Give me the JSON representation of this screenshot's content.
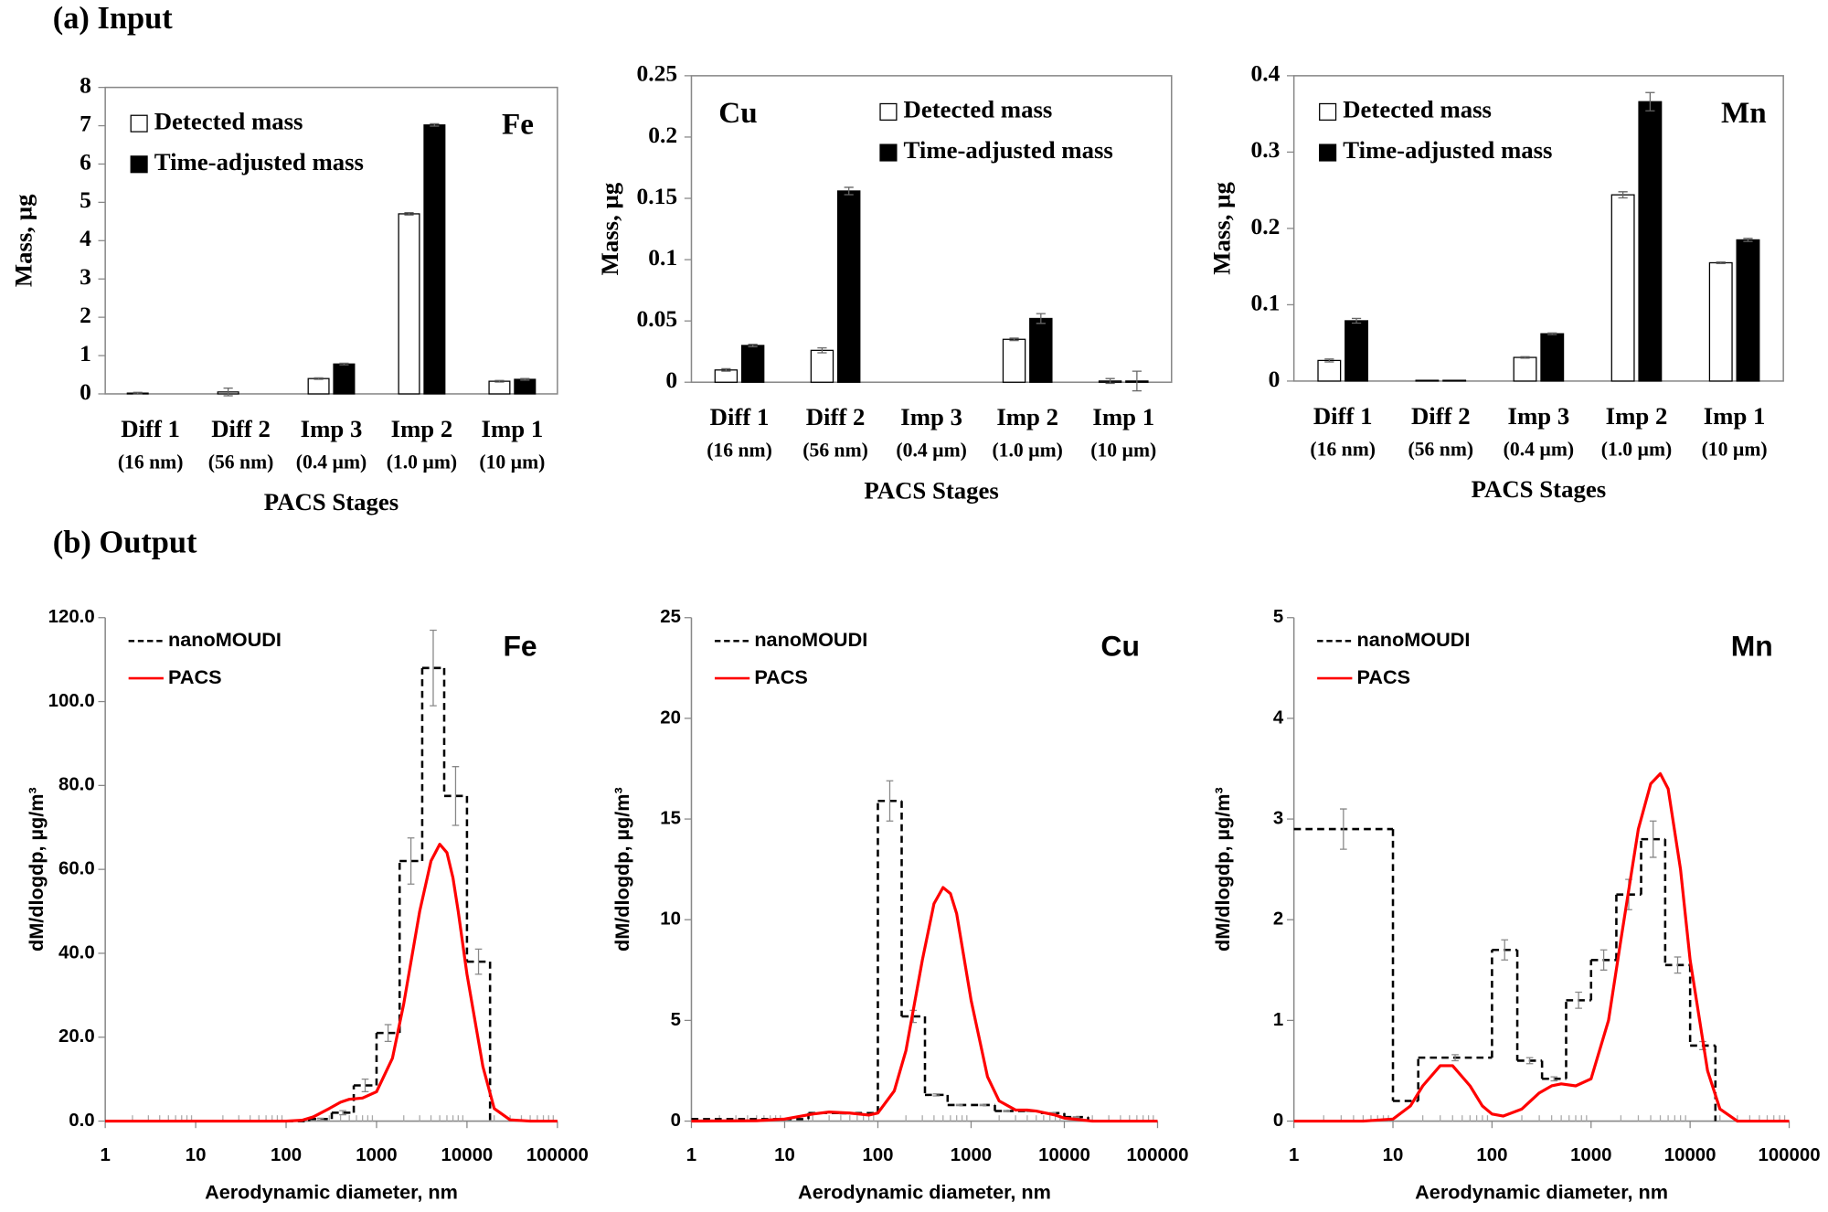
{
  "section_labels": [
    "(a) Input",
    "(b) Output"
  ],
  "chart_data": [
    {
      "type": "bar",
      "annotation": "Fe",
      "annotation_loc": "upper right",
      "legend": "upper left",
      "ylabel": "Mass, µg",
      "xlabel": "PACS Stages",
      "categories": [
        "Diff 1",
        "Diff 2",
        "Imp 3",
        "Imp 2",
        "Imp 1"
      ],
      "category_sublabels": [
        "(16 nm)",
        "(56 nm)",
        "(0.4 µm)",
        "(1.0 µm)",
        "(10 µm)"
      ],
      "ylim": [
        0,
        8
      ],
      "yticks": [
        0,
        1,
        2,
        3,
        4,
        5,
        6,
        7,
        8
      ],
      "series": [
        {
          "name": "Detected mass",
          "color": "#ffffff",
          "values": [
            0.02,
            0.05,
            0.4,
            4.7,
            0.33
          ],
          "errors": [
            0.02,
            0.1,
            0.02,
            0.03,
            0.02
          ]
        },
        {
          "name": "Time-adjusted mass",
          "color": "#000000",
          "values": [
            0,
            0,
            0.78,
            7.02,
            0.38
          ],
          "errors": [
            0,
            0,
            0.02,
            0.03,
            0.02
          ]
        }
      ]
    },
    {
      "type": "bar",
      "annotation": "Cu",
      "annotation_loc": "upper left",
      "legend": "upper right",
      "ylabel": "Mass, µg",
      "xlabel": "PACS Stages",
      "categories": [
        "Diff 1",
        "Diff 2",
        "Imp 3",
        "Imp 2",
        "Imp 1"
      ],
      "category_sublabels": [
        "(16 nm)",
        "(56 nm)",
        "(0.4 µm)",
        "(1.0 µm)",
        "(10 µm)"
      ],
      "ylim": [
        0,
        0.25
      ],
      "yticks": [
        0,
        0.05,
        0.1,
        0.15,
        0.2,
        0.25
      ],
      "series": [
        {
          "name": "Detected mass",
          "color": "#ffffff",
          "values": [
            0.01,
            0.026,
            0,
            0.035,
            0.001
          ],
          "errors": [
            0.001,
            0.002,
            0,
            0.001,
            0.002
          ]
        },
        {
          "name": "Time-adjusted mass",
          "color": "#000000",
          "values": [
            0.03,
            0.156,
            0,
            0.052,
            0.001
          ],
          "errors": [
            0.001,
            0.003,
            0,
            0.004,
            0.008
          ]
        }
      ]
    },
    {
      "type": "bar",
      "annotation": "Mn",
      "annotation_loc": "upper right",
      "legend": "upper left",
      "ylabel": "Mass, µg",
      "xlabel": "PACS Stages",
      "categories": [
        "Diff 1",
        "Diff 2",
        "Imp 3",
        "Imp 2",
        "Imp 1"
      ],
      "category_sublabels": [
        "(16 nm)",
        "(56 nm)",
        "(0.4 µm)",
        "(1.0 µm)",
        "(10 µm)"
      ],
      "ylim": [
        0,
        0.4
      ],
      "yticks": [
        0,
        0.1,
        0.2,
        0.3,
        0.4
      ],
      "series": [
        {
          "name": "Detected mass",
          "color": "#ffffff",
          "values": [
            0.027,
            0.001,
            0.031,
            0.244,
            0.155
          ],
          "errors": [
            0.002,
            0,
            0.001,
            0.004,
            0.001
          ]
        },
        {
          "name": "Time-adjusted mass",
          "color": "#000000",
          "values": [
            0.079,
            0.001,
            0.062,
            0.366,
            0.185
          ],
          "errors": [
            0.003,
            0,
            0.001,
            0.012,
            0.002
          ]
        }
      ]
    },
    {
      "type": "line",
      "annotation": "Fe",
      "annotation_loc": "upper right",
      "legend": "upper left",
      "ylabel": "dM/dlogdp, µg/m³",
      "xlabel": "Aerodynamic diameter, nm",
      "xscale": "log",
      "xlim": [
        1,
        100000
      ],
      "xticks": [
        1,
        10,
        100,
        1000,
        10000,
        100000
      ],
      "ylim": [
        0,
        120
      ],
      "yticks": [
        {
          "value": 0,
          "label": "0.0"
        },
        {
          "value": 20,
          "label": "20.0"
        },
        {
          "value": 40,
          "label": "40.0"
        },
        {
          "value": 60,
          "label": "60.0"
        },
        {
          "value": 80,
          "label": "80.0"
        },
        {
          "value": 100,
          "label": "100.0"
        },
        {
          "value": 120,
          "label": "120.0"
        }
      ],
      "series": [
        {
          "name": "nanoMOUDI",
          "color": "#000000",
          "style": "step",
          "bins": [
            1,
            10,
            18,
            100,
            180,
            320,
            560,
            1000,
            1800,
            3200,
            5600,
            10000,
            18000
          ],
          "values": [
            0,
            0,
            0,
            0,
            0.5,
            2,
            8.5,
            21,
            62,
            108,
            77.5,
            38
          ],
          "errors": [
            0,
            0,
            0,
            0,
            0.2,
            0.5,
            1.5,
            2,
            5.5,
            9,
            7,
            3
          ]
        },
        {
          "name": "PACS",
          "color": "#ff0000",
          "style": "curve",
          "x": [
            1,
            10,
            100,
            150,
            200,
            300,
            400,
            500,
            700,
            1000,
            1500,
            2000,
            3000,
            4000,
            5000,
            6000,
            7000,
            8000,
            10000,
            15000,
            20000,
            30000,
            50000,
            100000
          ],
          "values": [
            0,
            0,
            0,
            0.2,
            1,
            3,
            4.5,
            5.2,
            5.5,
            7,
            15,
            28,
            50,
            62,
            66,
            64,
            58,
            50,
            35,
            13,
            3,
            0.3,
            0,
            0
          ]
        }
      ]
    },
    {
      "type": "line",
      "annotation": "Cu",
      "annotation_loc": "upper right",
      "legend": "upper left",
      "ylabel": "dM/dlogdp, µg/m³",
      "xlabel": "Aerodynamic diameter, nm",
      "xscale": "log",
      "xlim": [
        1,
        100000
      ],
      "xticks": [
        1,
        10,
        100,
        1000,
        10000,
        100000
      ],
      "ylim": [
        0,
        25
      ],
      "yticks": [
        0,
        5,
        10,
        15,
        20,
        25
      ],
      "series": [
        {
          "name": "nanoMOUDI",
          "color": "#000000",
          "style": "step",
          "bins": [
            1,
            10,
            18,
            100,
            180,
            320,
            560,
            1000,
            1800,
            3200,
            5600,
            10000,
            18000
          ],
          "values": [
            0.1,
            0.1,
            0.4,
            15.9,
            5.2,
            1.3,
            0.8,
            0.8,
            0.5,
            0.5,
            0.4,
            0.2
          ],
          "errors": [
            0,
            0,
            0.05,
            1,
            0.3,
            0.05,
            0.03,
            0.03,
            0.03,
            0.03,
            0.02,
            0.02
          ]
        },
        {
          "name": "PACS",
          "color": "#ff0000",
          "style": "curve",
          "x": [
            1,
            5,
            10,
            20,
            30,
            50,
            80,
            100,
            150,
            200,
            300,
            400,
            500,
            600,
            700,
            1000,
            1500,
            2000,
            3000,
            4000,
            5000,
            8000,
            10000,
            20000,
            50000,
            100000
          ],
          "values": [
            0,
            0.02,
            0.1,
            0.35,
            0.45,
            0.4,
            0.3,
            0.4,
            1.5,
            3.5,
            8,
            10.8,
            11.6,
            11.3,
            10.3,
            6,
            2.2,
            1,
            0.55,
            0.55,
            0.5,
            0.3,
            0.15,
            0,
            0,
            0
          ]
        }
      ]
    },
    {
      "type": "line",
      "annotation": "Mn",
      "annotation_loc": "upper right",
      "legend": "upper left",
      "ylabel": "dM/dlogdp, µg/m³",
      "xlabel": "Aerodynamic diameter, nm",
      "xscale": "log",
      "xlim": [
        1,
        100000
      ],
      "xticks": [
        1,
        10,
        100,
        1000,
        10000,
        100000
      ],
      "ylim": [
        0,
        5
      ],
      "yticks": [
        0,
        1,
        2,
        3,
        4,
        5
      ],
      "series": [
        {
          "name": "nanoMOUDI",
          "color": "#000000",
          "style": "step",
          "bins": [
            1,
            10,
            18,
            100,
            180,
            320,
            560,
            1000,
            1800,
            3200,
            5600,
            10000,
            18000
          ],
          "values": [
            2.9,
            0.2,
            0.63,
            1.7,
            0.6,
            0.42,
            1.2,
            1.6,
            2.25,
            2.8,
            1.55,
            0.75
          ],
          "errors": [
            0.2,
            0,
            0.03,
            0.1,
            0.03,
            0.02,
            0.08,
            0.1,
            0.15,
            0.18,
            0.08,
            0.04
          ]
        },
        {
          "name": "PACS",
          "color": "#ff0000",
          "style": "curve",
          "x": [
            1,
            5,
            10,
            15,
            20,
            30,
            40,
            60,
            80,
            100,
            130,
            200,
            300,
            400,
            500,
            700,
            1000,
            1500,
            2000,
            3000,
            4000,
            5000,
            6000,
            8000,
            10000,
            15000,
            20000,
            30000,
            50000,
            100000
          ],
          "values": [
            0,
            0,
            0.02,
            0.15,
            0.35,
            0.55,
            0.55,
            0.35,
            0.15,
            0.07,
            0.05,
            0.12,
            0.28,
            0.35,
            0.37,
            0.35,
            0.42,
            1,
            1.8,
            2.9,
            3.35,
            3.45,
            3.3,
            2.5,
            1.6,
            0.5,
            0.12,
            0,
            0,
            0
          ]
        }
      ]
    }
  ]
}
